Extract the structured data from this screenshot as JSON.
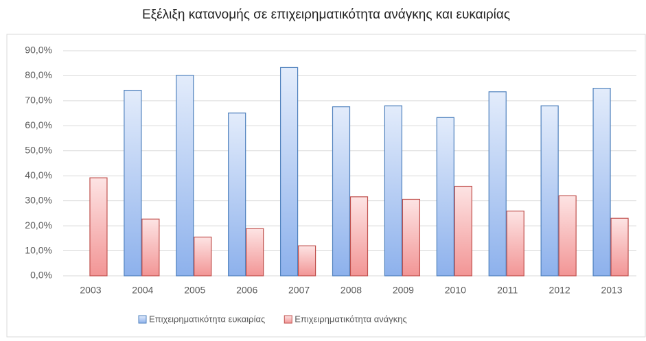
{
  "chart_data": {
    "type": "bar",
    "title": "Εξέλιξη κατανομής σε επιχειρηματικότητα ανάγκης και ευκαιρίας",
    "categories": [
      "2003",
      "2004",
      "2005",
      "2006",
      "2007",
      "2008",
      "2009",
      "2010",
      "2011",
      "2012",
      "2013"
    ],
    "series": [
      {
        "name": "Επιχειρηματικότητα ευκαιρίας",
        "color": "#4f81bd",
        "values": [
          null,
          74.2,
          80.2,
          65.1,
          83.3,
          67.6,
          68.0,
          63.3,
          73.6,
          68.0,
          75.0
        ]
      },
      {
        "name": "Επιχειρηματικότητα ανάγκης",
        "color": "#c0504d",
        "values": [
          39.2,
          22.7,
          15.5,
          18.9,
          12.0,
          31.6,
          30.6,
          35.8,
          25.9,
          32.0,
          23.0
        ]
      }
    ],
    "ylim": [
      0,
      90
    ],
    "yticks": [
      {
        "value": 0,
        "label": "0,0%"
      },
      {
        "value": 10,
        "label": "10,0%"
      },
      {
        "value": 20,
        "label": "20,0%"
      },
      {
        "value": 30,
        "label": "30,0%"
      },
      {
        "value": 40,
        "label": "40,0%"
      },
      {
        "value": 50,
        "label": "50,0%"
      },
      {
        "value": 60,
        "label": "60,0%"
      },
      {
        "value": 70,
        "label": "70,0%"
      },
      {
        "value": 80,
        "label": "80,0%"
      },
      {
        "value": 90,
        "label": "90,0%"
      }
    ],
    "grid": true,
    "legend": "bottom"
  }
}
